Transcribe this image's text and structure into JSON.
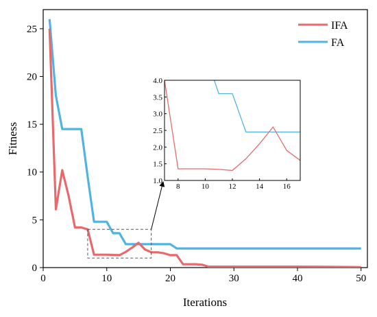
{
  "chart_data": {
    "type": "line",
    "xlabel": "Iterations",
    "ylabel": "Fitness",
    "xlim": [
      0,
      51
    ],
    "ylim": [
      0,
      27
    ],
    "x_ticks": [
      "0",
      "10",
      "20",
      "30",
      "40",
      "50"
    ],
    "y_ticks": [
      "0",
      "5",
      "10",
      "15",
      "20",
      "25"
    ],
    "legend_position": "top-right",
    "series": [
      {
        "name": "IFA",
        "color": "#e8696b",
        "points": [
          [
            1,
            25
          ],
          [
            2,
            6.1
          ],
          [
            3,
            10.2
          ],
          [
            4,
            7.5
          ],
          [
            5,
            4.2
          ],
          [
            6,
            4.2
          ],
          [
            7,
            4.0
          ],
          [
            8,
            1.35
          ],
          [
            9,
            1.35
          ],
          [
            10,
            1.35
          ],
          [
            11,
            1.33
          ],
          [
            12,
            1.3
          ],
          [
            13,
            1.65
          ],
          [
            14,
            2.1
          ],
          [
            15,
            2.6
          ],
          [
            16,
            1.9
          ],
          [
            17,
            1.6
          ],
          [
            18,
            1.6
          ],
          [
            19,
            1.5
          ],
          [
            20,
            1.3
          ],
          [
            21,
            1.3
          ],
          [
            22,
            0.35
          ],
          [
            23,
            0.35
          ],
          [
            24,
            0.35
          ],
          [
            25,
            0.3
          ],
          [
            26,
            0.1
          ],
          [
            30,
            0.1
          ],
          [
            35,
            0.1
          ],
          [
            40,
            0.1
          ],
          [
            45,
            0.08
          ],
          [
            50,
            0.05
          ]
        ]
      },
      {
        "name": "FA",
        "color": "#4fb3e3",
        "points": [
          [
            1,
            26
          ],
          [
            2,
            18
          ],
          [
            3,
            14.5
          ],
          [
            4,
            14.5
          ],
          [
            5,
            14.5
          ],
          [
            6,
            14.5
          ],
          [
            7,
            9.5
          ],
          [
            8,
            4.8
          ],
          [
            9,
            4.8
          ],
          [
            10,
            4.8
          ],
          [
            11,
            3.6
          ],
          [
            12,
            3.6
          ],
          [
            13,
            2.45
          ],
          [
            14,
            2.45
          ],
          [
            15,
            2.45
          ],
          [
            16,
            2.45
          ],
          [
            17,
            2.45
          ],
          [
            18,
            2.45
          ],
          [
            19,
            2.45
          ],
          [
            20,
            2.45
          ],
          [
            21,
            2.0
          ],
          [
            22,
            2.0
          ],
          [
            25,
            2.0
          ],
          [
            30,
            2.0
          ],
          [
            35,
            2.0
          ],
          [
            40,
            2.0
          ],
          [
            45,
            2.0
          ],
          [
            50,
            2.0
          ]
        ]
      }
    ],
    "inset": {
      "xlim": [
        7,
        17
      ],
      "ylim": [
        1.0,
        4.0
      ],
      "x_ticks": [
        "8",
        "10",
        "12",
        "14",
        "16"
      ],
      "y_ticks": [
        "1.0",
        "1.5",
        "2.0",
        "2.5",
        "3.0",
        "3.5",
        "4.0"
      ]
    }
  }
}
